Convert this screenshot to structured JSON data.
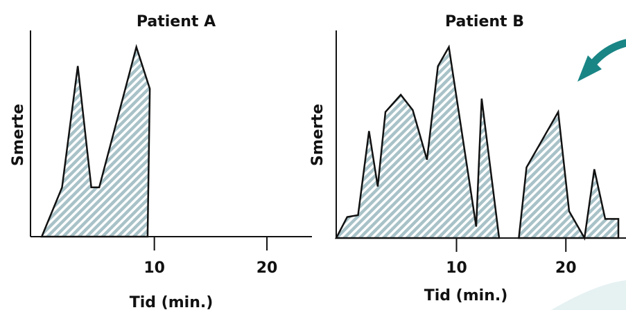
{
  "chart_data": [
    {
      "type": "area",
      "title": "Patient A",
      "xlabel": "Tid (min.)",
      "ylabel": "Smerte",
      "xlim": [
        -1,
        24
      ],
      "ylim": [
        0,
        10
      ],
      "xticks": [
        10,
        20
      ],
      "grid": false,
      "legend": "none",
      "fill_pattern": "diagonal-hatch",
      "fill_color": "#a8c2c8",
      "series": [
        {
          "x": [
            0,
            1.8,
            3.2,
            4.4,
            5.1,
            8.4,
            9.6,
            9.4,
            0
          ],
          "y": [
            0,
            2.6,
            9.0,
            2.6,
            2.6,
            10.0,
            7.8,
            0,
            0
          ]
        }
      ]
    },
    {
      "type": "area",
      "title": "Patient B",
      "xlabel": "Tid (min.)",
      "ylabel": "Smerte",
      "xlim": [
        -1,
        25.5
      ],
      "ylim": [
        0,
        10
      ],
      "xticks": [
        10,
        20
      ],
      "grid": false,
      "legend": "none",
      "fill_pattern": "diagonal-hatch",
      "fill_color": "#a8c2c8",
      "series": [
        {
          "x": [
            -1,
            0,
            1,
            2,
            2.8,
            3.5,
            4.9,
            6.0,
            7.3,
            8.3,
            9.3,
            11.8,
            12.3,
            13.9
          ],
          "y": [
            0,
            1.1,
            1.2,
            5.6,
            2.7,
            6.6,
            7.5,
            6.7,
            4.1,
            9.0,
            10.0,
            0.6,
            7.3,
            0
          ]
        },
        {
          "x": [
            15.7,
            16.4,
            19.3,
            20.3,
            21.7,
            22.6,
            23.6,
            24.8,
            24.8
          ],
          "y": [
            0,
            3.7,
            6.6,
            1.4,
            0,
            3.6,
            1.0,
            1.0,
            0
          ]
        }
      ]
    }
  ]
}
